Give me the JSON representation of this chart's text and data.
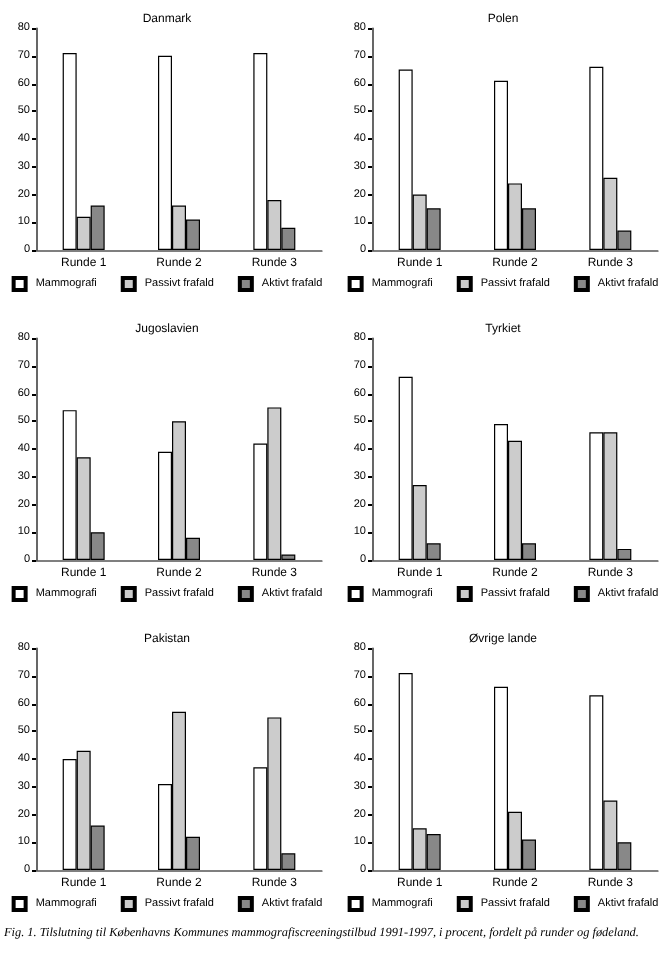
{
  "chart_data": [
    {
      "type": "bar",
      "title": "Danmark",
      "categories": [
        "Runde 1",
        "Runde 2",
        "Runde 3"
      ],
      "ylim": [
        0,
        80
      ],
      "yticks": [
        0,
        10,
        20,
        30,
        40,
        50,
        60,
        70,
        80
      ],
      "grid": false,
      "legend": "bottom",
      "series": [
        {
          "name": "Mammografi",
          "color": "#ffffff",
          "values": [
            71,
            70,
            71
          ]
        },
        {
          "name": "Passivt frafald",
          "color": "#cccccc",
          "values": [
            12,
            16,
            18
          ]
        },
        {
          "name": "Aktivt frafald",
          "color": "#888888",
          "values": [
            16,
            11,
            8
          ]
        }
      ]
    },
    {
      "type": "bar",
      "title": "Polen",
      "categories": [
        "Runde 1",
        "Runde 2",
        "Runde 3"
      ],
      "ylim": [
        0,
        80
      ],
      "yticks": [
        0,
        10,
        20,
        30,
        40,
        50,
        60,
        70,
        80
      ],
      "grid": false,
      "legend": "bottom",
      "series": [
        {
          "name": "Mammografi",
          "color": "#ffffff",
          "values": [
            65,
            61,
            66
          ]
        },
        {
          "name": "Passivt frafald",
          "color": "#cccccc",
          "values": [
            20,
            24,
            26
          ]
        },
        {
          "name": "Aktivt frafald",
          "color": "#888888",
          "values": [
            15,
            15,
            7
          ]
        }
      ]
    },
    {
      "type": "bar",
      "title": "Jugoslavien",
      "categories": [
        "Runde 1",
        "Runde 2",
        "Runde 3"
      ],
      "ylim": [
        0,
        80
      ],
      "yticks": [
        0,
        10,
        20,
        30,
        40,
        50,
        60,
        70,
        80
      ],
      "grid": false,
      "legend": "bottom",
      "series": [
        {
          "name": "Mammografi",
          "color": "#ffffff",
          "values": [
            54,
            39,
            42
          ]
        },
        {
          "name": "Passivt frafald",
          "color": "#cccccc",
          "values": [
            37,
            50,
            55
          ]
        },
        {
          "name": "Aktivt frafald",
          "color": "#888888",
          "values": [
            10,
            8,
            2
          ]
        }
      ]
    },
    {
      "type": "bar",
      "title": "Tyrkiet",
      "categories": [
        "Runde 1",
        "Runde 2",
        "Runde 3"
      ],
      "ylim": [
        0,
        80
      ],
      "yticks": [
        0,
        10,
        20,
        30,
        40,
        50,
        60,
        70,
        80
      ],
      "grid": false,
      "legend": "bottom",
      "series": [
        {
          "name": "Mammografi",
          "color": "#ffffff",
          "values": [
            66,
            49,
            46
          ]
        },
        {
          "name": "Passivt frafald",
          "color": "#cccccc",
          "values": [
            27,
            43,
            46
          ]
        },
        {
          "name": "Aktivt frafald",
          "color": "#888888",
          "values": [
            6,
            6,
            4
          ]
        }
      ]
    },
    {
      "type": "bar",
      "title": "Pakistan",
      "categories": [
        "Runde 1",
        "Runde 2",
        "Runde 3"
      ],
      "ylim": [
        0,
        80
      ],
      "yticks": [
        0,
        10,
        20,
        30,
        40,
        50,
        60,
        70,
        80
      ],
      "grid": false,
      "legend": "bottom",
      "series": [
        {
          "name": "Mammografi",
          "color": "#ffffff",
          "values": [
            40,
            31,
            37
          ]
        },
        {
          "name": "Passivt frafald",
          "color": "#cccccc",
          "values": [
            43,
            57,
            55
          ]
        },
        {
          "name": "Aktivt frafald",
          "color": "#888888",
          "values": [
            16,
            12,
            6
          ]
        }
      ]
    },
    {
      "type": "bar",
      "title": "Øvrige lande",
      "categories": [
        "Runde 1",
        "Runde 2",
        "Runde 3"
      ],
      "ylim": [
        0,
        80
      ],
      "yticks": [
        0,
        10,
        20,
        30,
        40,
        50,
        60,
        70,
        80
      ],
      "grid": false,
      "legend": "bottom",
      "annotations": [
        "Fig. 1. Tilslutning til Københavns Kommunes mammografiscreeningstilbud 1991-1997, i procent, fordelt på runder og fødeland."
      ],
      "series": [
        {
          "name": "Mammografi",
          "color": "#ffffff",
          "values": [
            71,
            66,
            63
          ]
        },
        {
          "name": "Passivt frafald",
          "color": "#cccccc",
          "values": [
            15,
            21,
            25
          ]
        },
        {
          "name": "Aktivt frafald",
          "color": "#888888",
          "values": [
            13,
            11,
            10
          ]
        }
      ]
    }
  ]
}
